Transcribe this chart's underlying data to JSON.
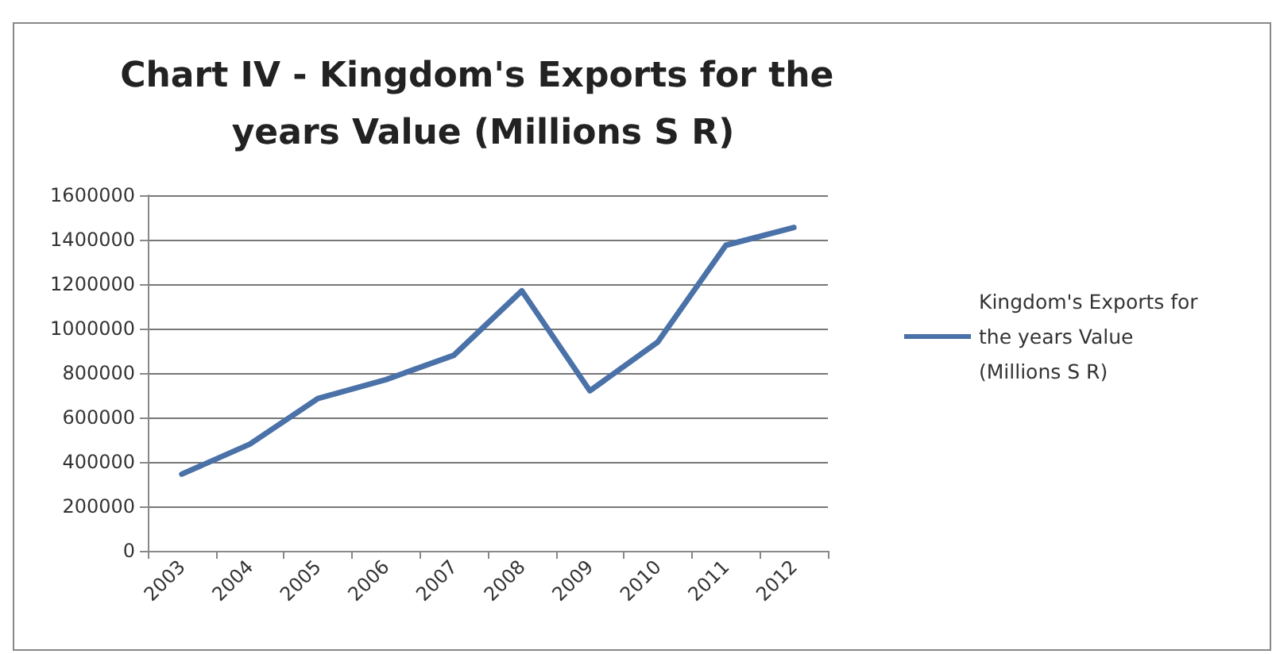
{
  "chart_data": {
    "type": "line",
    "title": "Chart IV - Kingdom's Exports for the years Value (Millions S R)",
    "categories": [
      "2003",
      "2004",
      "2005",
      "2006",
      "2007",
      "2008",
      "2009",
      "2010",
      "2011",
      "2012"
    ],
    "series": [
      {
        "name": "Kingdom's Exports for the years Value (Millions S R)",
        "color": "#4a72a8",
        "values": [
          345000,
          480000,
          685000,
          770000,
          880000,
          1170000,
          720000,
          940000,
          1375000,
          1455000
        ]
      }
    ],
    "ylim": [
      0,
      1600000
    ],
    "yticks": [
      0,
      200000,
      400000,
      600000,
      800000,
      1000000,
      1200000,
      1400000,
      1600000
    ],
    "grid": "y",
    "legend": "right",
    "marker": "none",
    "line_style": "solid"
  }
}
